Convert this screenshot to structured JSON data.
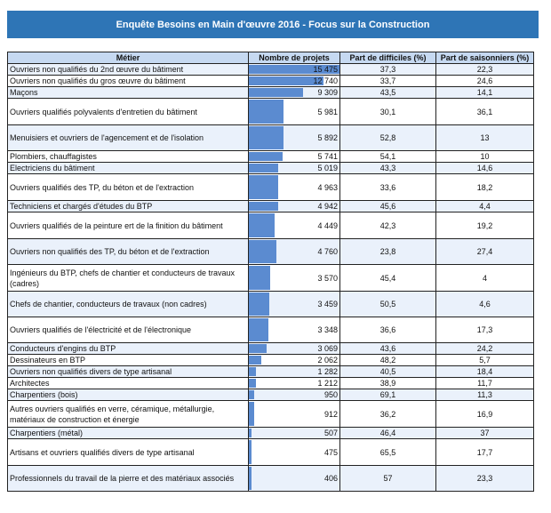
{
  "title": "Enquête Besoins en Main d'œuvre 2016 - Focus sur la Construction",
  "headers": [
    "Métier",
    "Nombre de projets",
    "Part de difficiles (%)",
    "Part de saisonniers (%)"
  ],
  "max_projets": 15475,
  "rows": [
    {
      "metier": "Ouvriers non qualifiés du 2nd œuvre du bâtiment",
      "projets": "15 475",
      "projets_value": 15475,
      "difficiles": "37,3",
      "saisonniers": "22,3"
    },
    {
      "metier": "Ouvriers non qualifiés du gros œuvre du bâtiment",
      "projets": "12 740",
      "projets_value": 12740,
      "difficiles": "33,7",
      "saisonniers": "24,6"
    },
    {
      "metier": "Maçons",
      "projets": "9 309",
      "projets_value": 9309,
      "difficiles": "43,5",
      "saisonniers": "14,1"
    },
    {
      "metier": "Ouvriers qualifiés polyvalents d'entretien du bâtiment",
      "projets": "5 981",
      "projets_value": 5981,
      "difficiles": "30,1",
      "saisonniers": "36,1"
    },
    {
      "metier": "Menuisiers et ouvriers de l'agencement et de l'isolation",
      "projets": "5 892",
      "projets_value": 5892,
      "difficiles": "52,8",
      "saisonniers": "13"
    },
    {
      "metier": "Plombiers, chauffagistes",
      "projets": "5 741",
      "projets_value": 5741,
      "difficiles": "54,1",
      "saisonniers": "10"
    },
    {
      "metier": "Electriciens du bâtiment",
      "projets": "5 019",
      "projets_value": 5019,
      "difficiles": "43,3",
      "saisonniers": "14,6"
    },
    {
      "metier": "Ouvriers qualifiés des TP, du béton et de l'extraction",
      "projets": "4 963",
      "projets_value": 4963,
      "difficiles": "33,6",
      "saisonniers": "18,2"
    },
    {
      "metier": "Techniciens et chargés d'études du BTP",
      "projets": "4 942",
      "projets_value": 4942,
      "difficiles": "45,6",
      "saisonniers": "4,4"
    },
    {
      "metier": "Ouvriers qualifiés de la peinture ert de la finition du bâtiment",
      "projets": "4 449",
      "projets_value": 4449,
      "difficiles": "42,3",
      "saisonniers": "19,2"
    },
    {
      "metier": "Ouvriers non qualifiés des TP, du béton et de l'extraction",
      "projets": "4 760",
      "projets_value": 4760,
      "difficiles": "23,8",
      "saisonniers": "27,4"
    },
    {
      "metier": "Ingénieurs du BTP, chefs de chantier et conducteurs de travaux (cadres)",
      "projets": "3 570",
      "projets_value": 3570,
      "difficiles": "45,4",
      "saisonniers": "4"
    },
    {
      "metier": "Chefs de chantier, conducteurs de travaux (non cadres)",
      "projets": "3 459",
      "projets_value": 3459,
      "difficiles": "50,5",
      "saisonniers": "4,6"
    },
    {
      "metier": "Ouvriers qualifiés de l'électricité et de l'électronique",
      "projets": "3 348",
      "projets_value": 3348,
      "difficiles": "36,6",
      "saisonniers": "17,3"
    },
    {
      "metier": "Conducteurs d'engins du BTP",
      "projets": "3 069",
      "projets_value": 3069,
      "difficiles": "43,6",
      "saisonniers": "24,2"
    },
    {
      "metier": "Dessinateurs en BTP",
      "projets": "2 062",
      "projets_value": 2062,
      "difficiles": "48,2",
      "saisonniers": "5,7"
    },
    {
      "metier": "Ouvriers non qualifiés divers de type artisanal",
      "projets": "1 282",
      "projets_value": 1282,
      "difficiles": "40,5",
      "saisonniers": "18,4"
    },
    {
      "metier": "Architectes",
      "projets": "1 212",
      "projets_value": 1212,
      "difficiles": "38,9",
      "saisonniers": "11,7"
    },
    {
      "metier": "Charpentiers (bois)",
      "projets": "950",
      "projets_value": 950,
      "difficiles": "69,1",
      "saisonniers": "11,3"
    },
    {
      "metier": "Autres ouvriers qualifiés en verre, céramique, métallurgie, matériaux de construction et énergie",
      "projets": "912",
      "projets_value": 912,
      "difficiles": "36,2",
      "saisonniers": "16,9"
    },
    {
      "metier": "Charpentiers (métal)",
      "projets": "507",
      "projets_value": 507,
      "difficiles": "46,4",
      "saisonniers": "37"
    },
    {
      "metier": "Artisans et ouvriers qualifiés divers de type artisanal",
      "projets": "475",
      "projets_value": 475,
      "difficiles": "65,5",
      "saisonniers": "17,7"
    },
    {
      "metier": "Professionnels du travail de la pierre et des matériaux associés",
      "projets": "406",
      "projets_value": 406,
      "difficiles": "57",
      "saisonniers": "23,3"
    }
  ],
  "colors": {
    "title_bg": "#2e75b6",
    "header_bg": "#c6d9f1",
    "bar": "#5b8bd0",
    "stripe": "#eaf1fb"
  }
}
